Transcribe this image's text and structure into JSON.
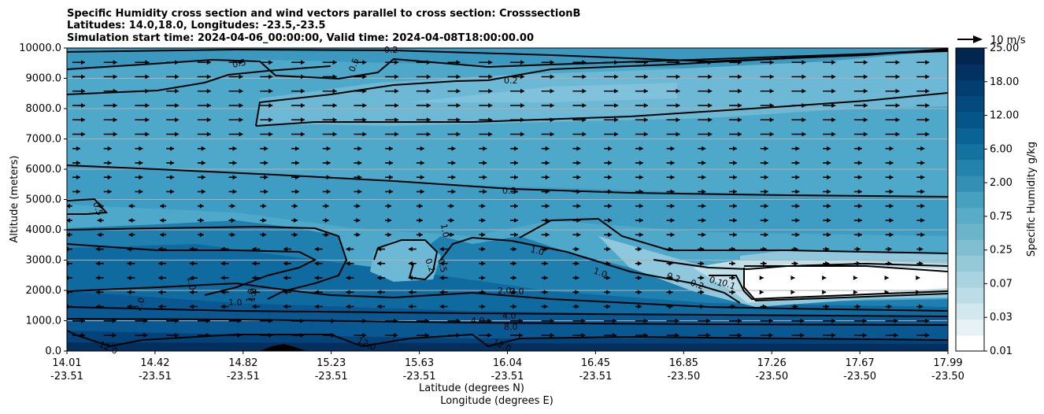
{
  "chart_data": {
    "type": "contour",
    "title_lines": [
      "Specific Humidity cross section and wind vectors parallel to cross section: CrosssectionB",
      "Latitudes: 14.0,18.0, Longitudes: -23.5,-23.5",
      "Simulation start time: 2024-04-06_00:00:00, Valid time: 2024-04-08T18:00:00.00"
    ],
    "ylabel": "Altitude (meters)",
    "xlabel_lat": "Latitude (degrees N)",
    "xlabel_lon": "Longitude (degrees E)",
    "ylim": [
      0,
      10000
    ],
    "yticks": [
      "0.0",
      "1000.0",
      "2000.0",
      "3000.0",
      "4000.0",
      "5000.0",
      "6000.0",
      "7000.0",
      "8000.0",
      "9000.0",
      "10000.0"
    ],
    "xticks_lat": [
      "14.01",
      "14.42",
      "14.82",
      "15.23",
      "15.63",
      "16.04",
      "16.45",
      "16.85",
      "17.26",
      "17.67",
      "17.99"
    ],
    "xticks_lon": [
      "-23.51",
      "-23.51",
      "-23.51",
      "-23.51",
      "-23.51",
      "-23.51",
      "-23.51",
      "-23.50",
      "-23.50",
      "-23.50",
      "-23.50"
    ],
    "colorbar_label": "Specific Humidity g/kg",
    "colorbar_ticks": [
      "0.01",
      "0.03",
      "0.07",
      "0.25",
      "0.75",
      "2.00",
      "6.00",
      "12.00",
      "18.00",
      "25.00"
    ],
    "colorbar_levels": [
      0.01,
      0.02,
      0.03,
      0.05,
      0.07,
      0.1,
      0.25,
      0.5,
      0.75,
      1.0,
      2.0,
      4.0,
      6.0,
      8.0,
      12.0,
      14.0,
      18.0,
      20.0,
      25.0
    ],
    "colorbar_colors": [
      "#ffffff",
      "#e6f2f5",
      "#d2e8ee",
      "#bddde6",
      "#a9d3df",
      "#94c9d8",
      "#80bfd1",
      "#6bb5ca",
      "#5aabc5",
      "#46a0bf",
      "#348fb5",
      "#2582ac",
      "#1571a0",
      "#0a6395",
      "#06558a",
      "#044a7e",
      "#033e70",
      "#02325f",
      "#022650"
    ],
    "quiver_key": "10 m/s",
    "contour_labels": [
      "0.2",
      "0.5",
      "0.5",
      "0.2",
      "0.5",
      "0.5",
      "1.0",
      "2.0",
      "4.0",
      "2.0",
      "1.0",
      "1.0",
      "12.0",
      "12.0",
      "12.0",
      "1.0",
      "0.2",
      "0.5",
      "1.0",
      "2.0",
      "4.0",
      "8.0",
      "1.0",
      "1.0",
      "0.2",
      "0.2",
      "0.1",
      "0.1"
    ]
  }
}
